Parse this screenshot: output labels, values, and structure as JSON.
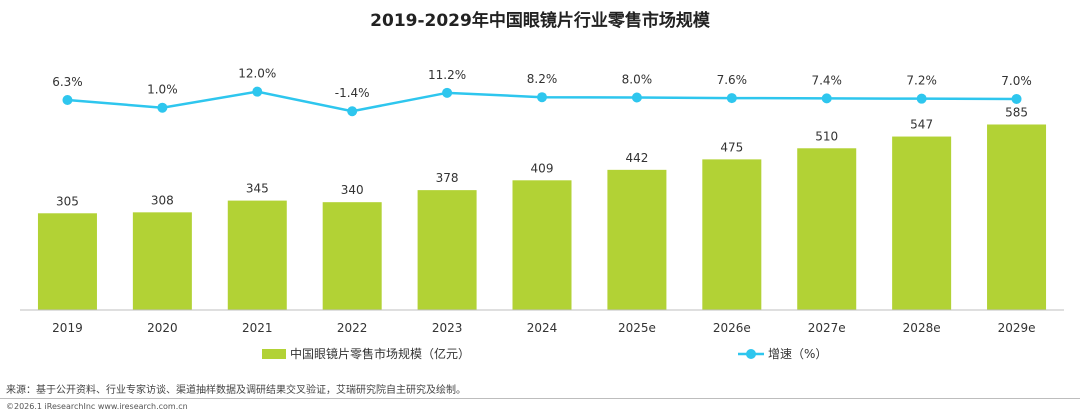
{
  "chart_data": {
    "type": "bar",
    "title": "2019-2029年中国眼镜片行业零售市场规模",
    "categories": [
      "2019",
      "2020",
      "2021",
      "2022",
      "2023",
      "2024",
      "2025e",
      "2026e",
      "2027e",
      "2028e",
      "2029e"
    ],
    "series": [
      {
        "name": "中国眼镜片零售市场规模（亿元）",
        "type": "bar",
        "color": "#b2d235",
        "values": [
          305,
          308,
          345,
          340,
          378,
          409,
          442,
          475,
          510,
          547,
          585
        ]
      },
      {
        "name": "增速（%）",
        "type": "line",
        "color": "#2ec6ee",
        "values": [
          6.3,
          1.0,
          12.0,
          -1.4,
          11.2,
          8.2,
          8.0,
          7.6,
          7.4,
          7.2,
          7.0
        ],
        "labels": [
          "6.3%",
          "1.0%",
          "12.0%",
          "-1.4%",
          "11.2%",
          "8.2%",
          "8.0%",
          "7.6%",
          "7.4%",
          "7.2%",
          "7.0%"
        ]
      }
    ],
    "xlabel": "",
    "ylabel": "",
    "legend_position": "bottom"
  },
  "source_note": "来源：基于公开资料、行业专家访谈、渠道抽样数据及调研结果交叉验证，艾瑞研究院自主研究及绘制。",
  "copyright": "©2026.1 iResearchInc www.iresearch.com.cn"
}
